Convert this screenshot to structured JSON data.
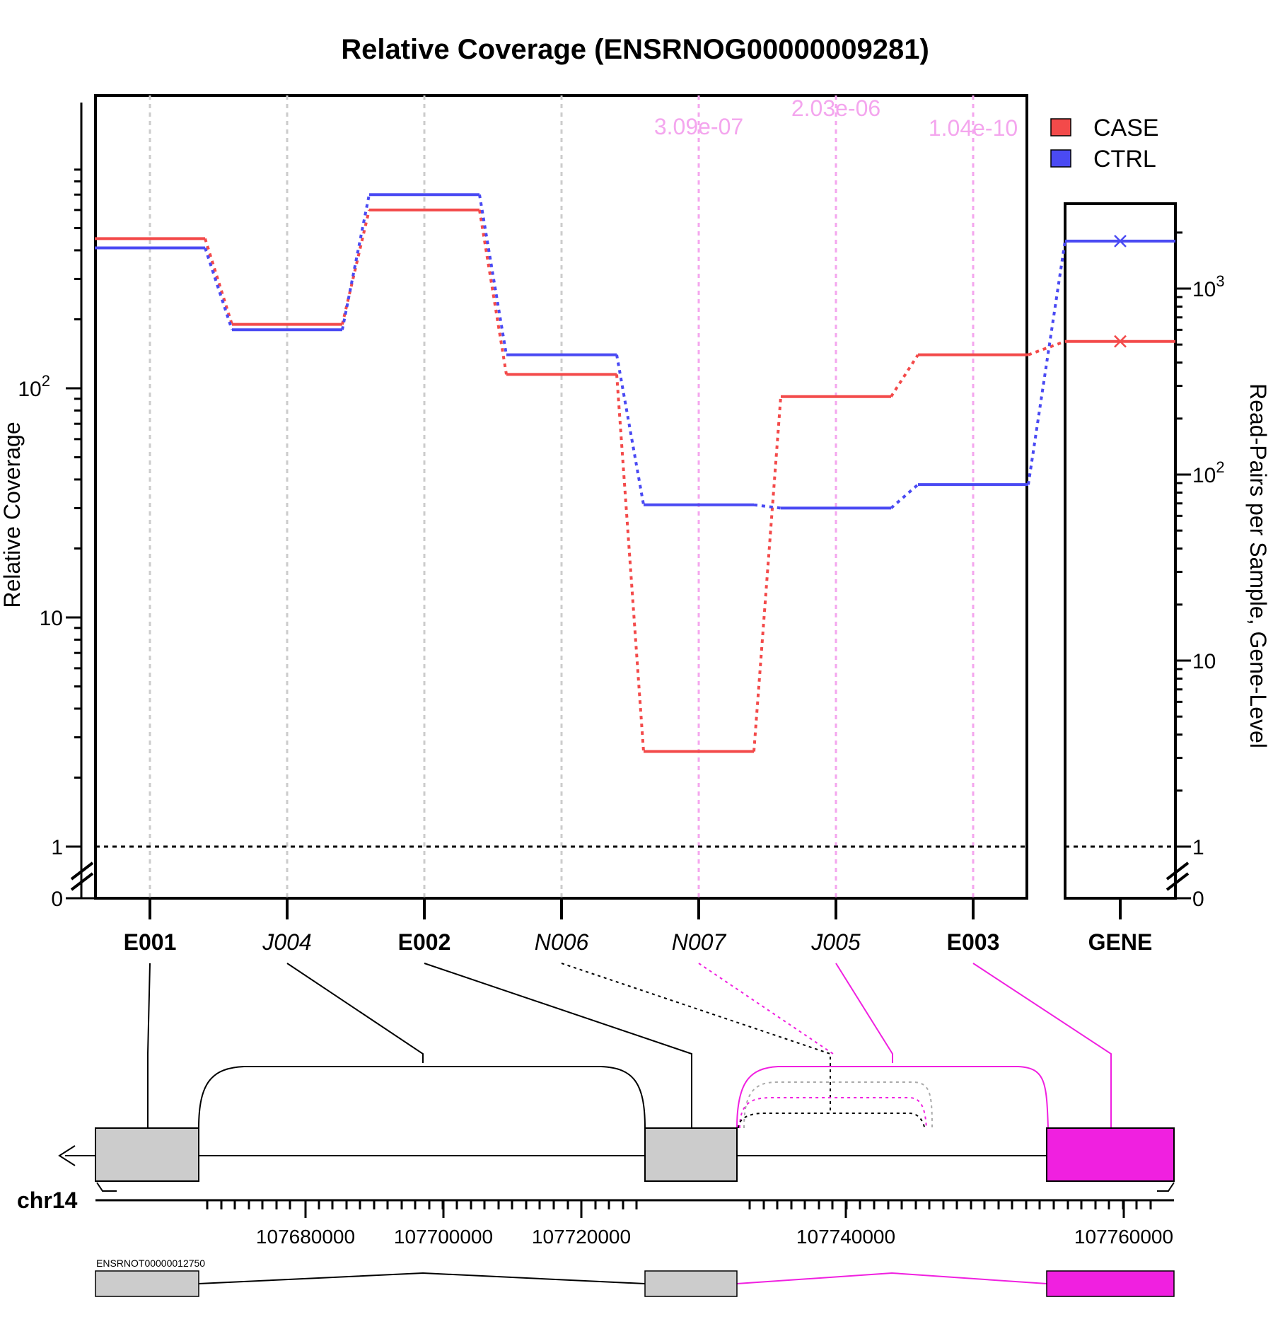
{
  "chart_data": {
    "type": "line",
    "title": "Relative Coverage (ENSRNOG00000009281)",
    "ylabel": "Relative Coverage",
    "ylabel_right": "Read-Pairs per Sample, Gene-Level",
    "y_scale": "log",
    "y_ticks_left": [
      {
        "value": 0,
        "label": "0"
      },
      {
        "value": 1,
        "label": "1"
      },
      {
        "value": 10,
        "label": "10"
      },
      {
        "value": 100,
        "label": "10",
        "exp": "2"
      }
    ],
    "y_ticks_right": [
      {
        "value": 0,
        "label": "0"
      },
      {
        "value": 1,
        "label": "1"
      },
      {
        "value": 10,
        "label": "10"
      },
      {
        "value": 100,
        "label": "10",
        "exp": "2"
      },
      {
        "value": 1000,
        "label": "10",
        "exp": "3"
      }
    ],
    "features": [
      {
        "name": "E001",
        "style": "bold"
      },
      {
        "name": "J004",
        "style": "italic"
      },
      {
        "name": "E002",
        "style": "bold"
      },
      {
        "name": "N006",
        "style": "italic"
      },
      {
        "name": "N007",
        "style": "italic"
      },
      {
        "name": "J005",
        "style": "italic"
      },
      {
        "name": "E003",
        "style": "bold"
      }
    ],
    "gene_column_label": "GENE",
    "series": [
      {
        "name": "CASE",
        "color": "#f34a4a",
        "values": [
          450,
          190,
          600,
          115,
          2.6,
          92,
          140
        ],
        "gene_value": 520
      },
      {
        "name": "CTRL",
        "color": "#4a4af3",
        "values": [
          410,
          180,
          700,
          140,
          31,
          30,
          38
        ],
        "gene_value": 1800
      }
    ],
    "pvalues": [
      {
        "feature": "N007",
        "label": "3.09e-07"
      },
      {
        "feature": "J005",
        "label": "2.03e-06"
      },
      {
        "feature": "E003",
        "label": "1.04e-10"
      }
    ],
    "legend_position": "top-right",
    "reference_line": 1
  },
  "gene_model": {
    "chromosome": "chr14",
    "coord_ticks": [
      "107680000",
      "107700000",
      "107720000",
      "107740000",
      "107760000"
    ],
    "transcript": "ENSRNOT00000012750",
    "exon_color": "#cccccc",
    "highlight_color": "#f020e0"
  }
}
